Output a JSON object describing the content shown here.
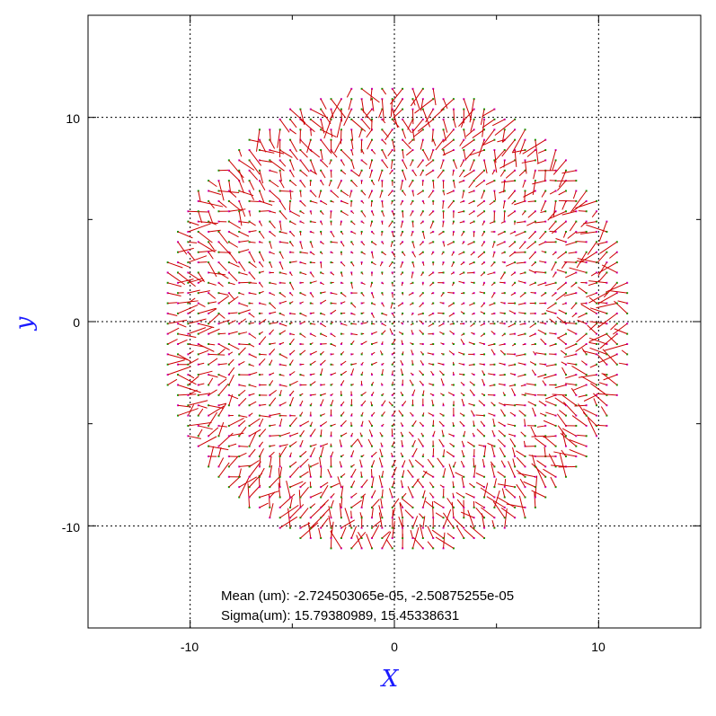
{
  "chart_data": {
    "type": "scatter",
    "title": "",
    "xlabel": "X",
    "ylabel": "y",
    "xlim": [
      -15,
      15
    ],
    "ylim": [
      -15,
      15
    ],
    "x_ticks": [
      -10,
      0,
      10
    ],
    "y_ticks": [
      -10,
      0,
      10
    ],
    "x_tick_labels": [
      "-10",
      "0",
      "10"
    ],
    "y_tick_labels": [
      "-10",
      "0",
      "10"
    ],
    "grid": "dotted at ±10 and 0",
    "field": {
      "kind": "vector-field",
      "domain": "disk",
      "center": [
        0,
        0
      ],
      "radius": 11.6,
      "spacing": 0.5,
      "vector_color": "#cc0000",
      "marker_colors": [
        "#00aa00",
        "#cc00cc"
      ]
    },
    "annotations": {
      "mean_line": "Mean (um): -2.724503065e-05, -2.50875255e-05",
      "sigma_line": "Sigma(um): 15.79380989, 15.45338631"
    },
    "colors": {
      "axis_label": "#1a1aff",
      "frame": "#000000",
      "grid": "#000000"
    }
  }
}
